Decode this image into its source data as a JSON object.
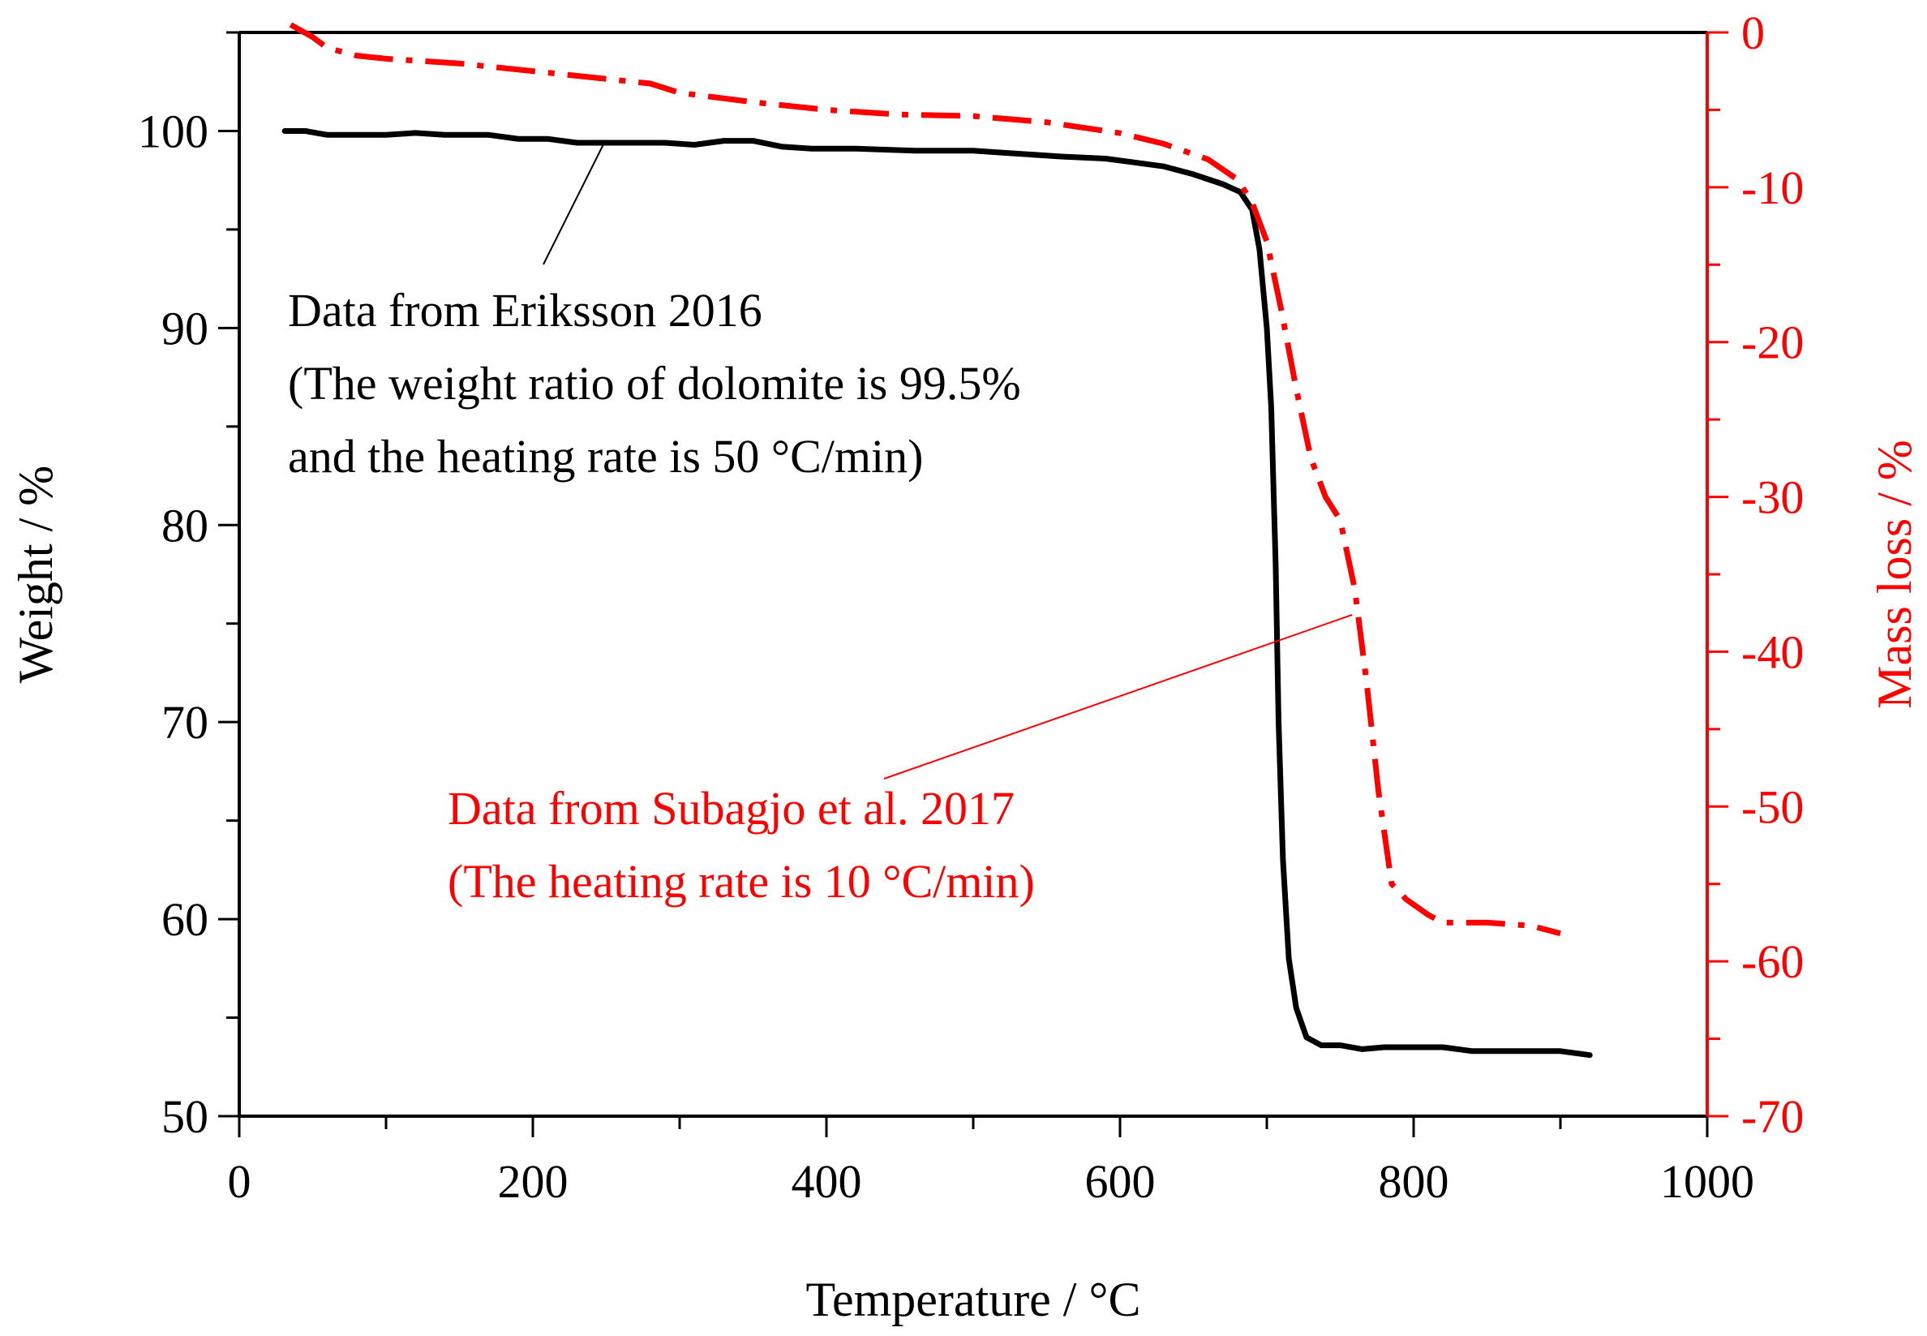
{
  "chart_data": {
    "type": "line",
    "xlabel": "Temperature / °C",
    "ylabel_left": "Weight / %",
    "ylabel_right": "Mass loss / %",
    "xlim": [
      0,
      1000
    ],
    "ylim_left": [
      50,
      105
    ],
    "ylim_right": [
      -70,
      0
    ],
    "x_ticks": [
      0,
      200,
      400,
      600,
      800,
      1000
    ],
    "x_tick_labels": [
      "0",
      "200",
      "400",
      "600",
      "800",
      "1000"
    ],
    "y_left_ticks": [
      50,
      60,
      70,
      80,
      90,
      100
    ],
    "y_left_tick_labels": [
      "50",
      "60",
      "70",
      "80",
      "90",
      "100"
    ],
    "y_right_ticks": [
      -70,
      -60,
      -50,
      -40,
      -30,
      -20,
      -10,
      0
    ],
    "y_right_tick_labels": [
      "-70",
      "-60",
      "-50",
      "-40",
      "-30",
      "-20",
      "-10",
      "0"
    ],
    "grid": false,
    "colors": {
      "axis": "#000000",
      "right_axis": "#ff0000",
      "series_black": "#000000",
      "series_red": "#ff0000"
    },
    "series": [
      {
        "name": "Data from Eriksson 2016",
        "axis": "left",
        "color": "#000000",
        "style": "solid",
        "points": [
          [
            31,
            100.0
          ],
          [
            45,
            100.0
          ],
          [
            60,
            99.8
          ],
          [
            80,
            99.8
          ],
          [
            100,
            99.8
          ],
          [
            120,
            99.9
          ],
          [
            140,
            99.8
          ],
          [
            170,
            99.8
          ],
          [
            190,
            99.6
          ],
          [
            210,
            99.6
          ],
          [
            230,
            99.4
          ],
          [
            260,
            99.4
          ],
          [
            290,
            99.4
          ],
          [
            310,
            99.3
          ],
          [
            330,
            99.5
          ],
          [
            350,
            99.5
          ],
          [
            370,
            99.2
          ],
          [
            390,
            99.1
          ],
          [
            420,
            99.1
          ],
          [
            460,
            99.0
          ],
          [
            500,
            99.0
          ],
          [
            520,
            98.9
          ],
          [
            560,
            98.7
          ],
          [
            590,
            98.6
          ],
          [
            610,
            98.4
          ],
          [
            630,
            98.2
          ],
          [
            650,
            97.8
          ],
          [
            670,
            97.3
          ],
          [
            682,
            96.9
          ],
          [
            690,
            96.0
          ],
          [
            695,
            94.0
          ],
          [
            700,
            90.0
          ],
          [
            703,
            86.0
          ],
          [
            706,
            78.0
          ],
          [
            708,
            70.0
          ],
          [
            711,
            63.0
          ],
          [
            715,
            58.0
          ],
          [
            720,
            55.5
          ],
          [
            727,
            54.0
          ],
          [
            737,
            53.6
          ],
          [
            750,
            53.6
          ],
          [
            765,
            53.4
          ],
          [
            780,
            53.5
          ],
          [
            800,
            53.5
          ],
          [
            820,
            53.5
          ],
          [
            840,
            53.3
          ],
          [
            870,
            53.3
          ],
          [
            900,
            53.3
          ],
          [
            920,
            53.1
          ]
        ]
      },
      {
        "name": "Data from Subagjo et al. 2017",
        "axis": "right",
        "color": "#ff0000",
        "style": "dash-dot",
        "points": [
          [
            35,
            0.5
          ],
          [
            50,
            -0.3
          ],
          [
            60,
            -1.0
          ],
          [
            80,
            -1.5
          ],
          [
            100,
            -1.7
          ],
          [
            150,
            -2.0
          ],
          [
            200,
            -2.5
          ],
          [
            250,
            -3.0
          ],
          [
            280,
            -3.3
          ],
          [
            300,
            -3.9
          ],
          [
            350,
            -4.5
          ],
          [
            400,
            -5.0
          ],
          [
            450,
            -5.3
          ],
          [
            500,
            -5.4
          ],
          [
            550,
            -5.8
          ],
          [
            600,
            -6.5
          ],
          [
            630,
            -7.2
          ],
          [
            660,
            -8.2
          ],
          [
            680,
            -9.5
          ],
          [
            690,
            -11.0
          ],
          [
            700,
            -13.5
          ],
          [
            710,
            -18.0
          ],
          [
            720,
            -23.0
          ],
          [
            730,
            -27.5
          ],
          [
            740,
            -30.0
          ],
          [
            750,
            -31.5
          ],
          [
            760,
            -36.0
          ],
          [
            768,
            -42.0
          ],
          [
            776,
            -49.0
          ],
          [
            785,
            -55.0
          ],
          [
            795,
            -56.0
          ],
          [
            810,
            -57.0
          ],
          [
            820,
            -57.5
          ],
          [
            850,
            -57.5
          ],
          [
            880,
            -57.7
          ],
          [
            900,
            -58.2
          ]
        ]
      }
    ],
    "annotations": {
      "black": {
        "line1": "Data from Eriksson 2016",
        "line2": "(The weight ratio of dolomite is 99.5%",
        "line3": "and the heating rate is 50 °C/min)"
      },
      "red": {
        "line1": "Data from Subagjo et al. 2017",
        "line2": "(The heating rate is 10 °C/min)"
      }
    }
  }
}
